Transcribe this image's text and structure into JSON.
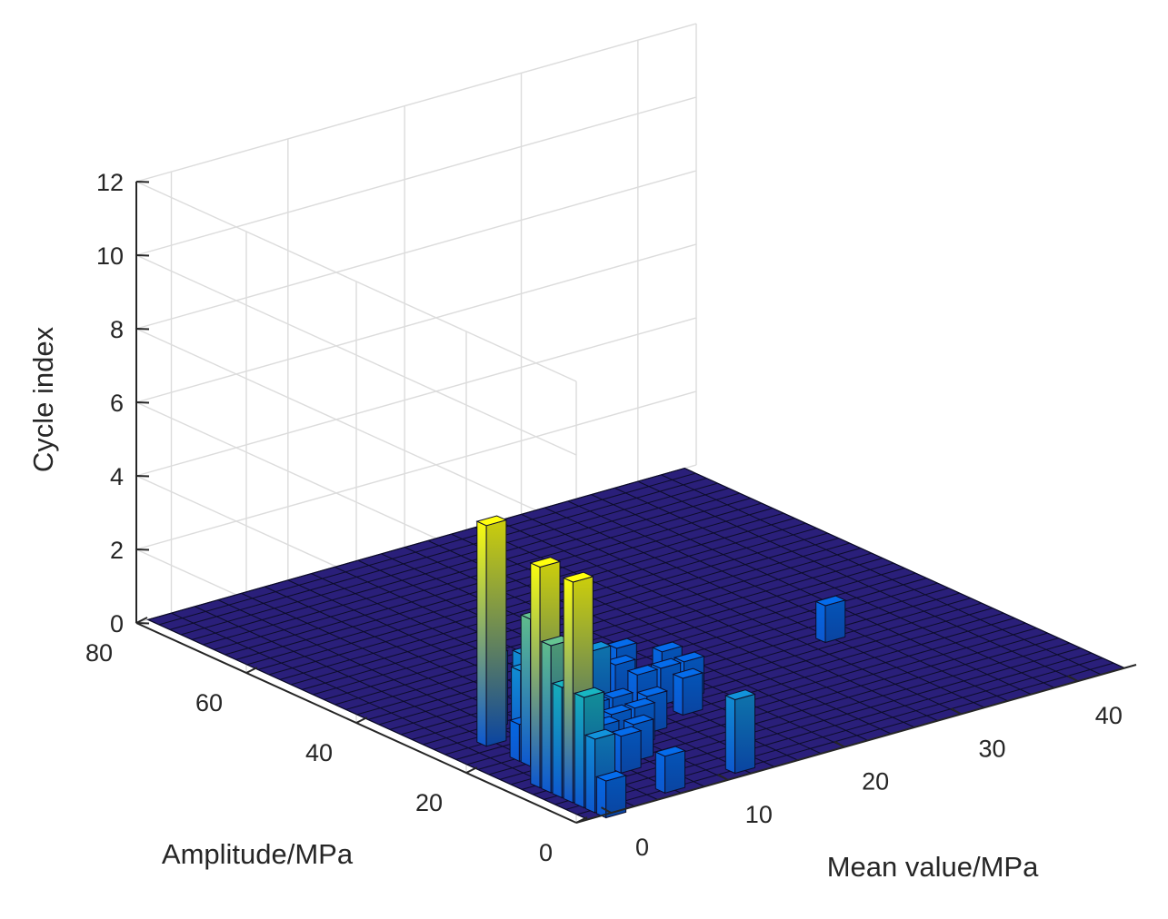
{
  "chart_data": {
    "type": "bar3",
    "title": "",
    "xlabel": "Mean value/MPa",
    "ylabel": "Amplitude/MPa",
    "zlabel": "Cycle index",
    "xlim": [
      -3,
      45
    ],
    "ylim": [
      0,
      80
    ],
    "zlim": [
      0,
      12
    ],
    "xticks": [
      "0",
      "10",
      "20",
      "30",
      "40"
    ],
    "yticks": [
      "0",
      "20",
      "40",
      "60",
      "80"
    ],
    "zticks": [
      "0",
      "2",
      "4",
      "6",
      "8",
      "10",
      "12"
    ],
    "grid": true,
    "bin_width": 2,
    "colormap": "parula",
    "colors": {
      "floor": "#2a1f7a",
      "edge": "#0d0d2a",
      "grid": "#dcdcdc",
      "axis": "#262626"
    },
    "bars": [
      {
        "x": 0,
        "y": 0,
        "z": 1
      },
      {
        "x": 0,
        "y": 2,
        "z": 2
      },
      {
        "x": 0,
        "y": 4,
        "z": 3
      },
      {
        "x": 0,
        "y": 6,
        "z": 6
      },
      {
        "x": 0,
        "y": 8,
        "z": 3
      },
      {
        "x": 0,
        "y": 10,
        "z": 4
      },
      {
        "x": 0,
        "y": 12,
        "z": 6
      },
      {
        "x": 2,
        "y": 10,
        "z": 1
      },
      {
        "x": 2,
        "y": 14,
        "z": 2
      },
      {
        "x": 2,
        "y": 18,
        "z": 4
      },
      {
        "x": 2,
        "y": 20,
        "z": 1
      },
      {
        "x": 2,
        "y": 26,
        "z": 6
      },
      {
        "x": 4,
        "y": 24,
        "z": 2
      },
      {
        "x": 4,
        "y": 30,
        "z": 2
      },
      {
        "x": 6,
        "y": 2,
        "z": 1
      },
      {
        "x": 6,
        "y": 10,
        "z": 1
      },
      {
        "x": 6,
        "y": 14,
        "z": 1
      },
      {
        "x": 6,
        "y": 18,
        "z": 1
      },
      {
        "x": 6,
        "y": 24,
        "z": 2
      },
      {
        "x": 6,
        "y": 28,
        "z": 2
      },
      {
        "x": 8,
        "y": 12,
        "z": 1
      },
      {
        "x": 8,
        "y": 16,
        "z": 1
      },
      {
        "x": 8,
        "y": 20,
        "z": 1
      },
      {
        "x": 8,
        "y": 26,
        "z": 1
      },
      {
        "x": 10,
        "y": 16,
        "z": 1
      },
      {
        "x": 10,
        "y": 20,
        "z": 1
      },
      {
        "x": 10,
        "y": 24,
        "z": 2
      },
      {
        "x": 12,
        "y": 2,
        "z": 2
      },
      {
        "x": 12,
        "y": 18,
        "z": 1
      },
      {
        "x": 14,
        "y": 24,
        "z": 1
      },
      {
        "x": 14,
        "y": 28,
        "z": 1
      },
      {
        "x": 16,
        "y": 20,
        "z": 1
      },
      {
        "x": 16,
        "y": 24,
        "z": 1
      },
      {
        "x": 16,
        "y": 32,
        "z": 1
      },
      {
        "x": 18,
        "y": 24,
        "z": 1
      },
      {
        "x": 18,
        "y": 28,
        "z": 1
      },
      {
        "x": 32,
        "y": 28,
        "z": 1
      }
    ]
  }
}
